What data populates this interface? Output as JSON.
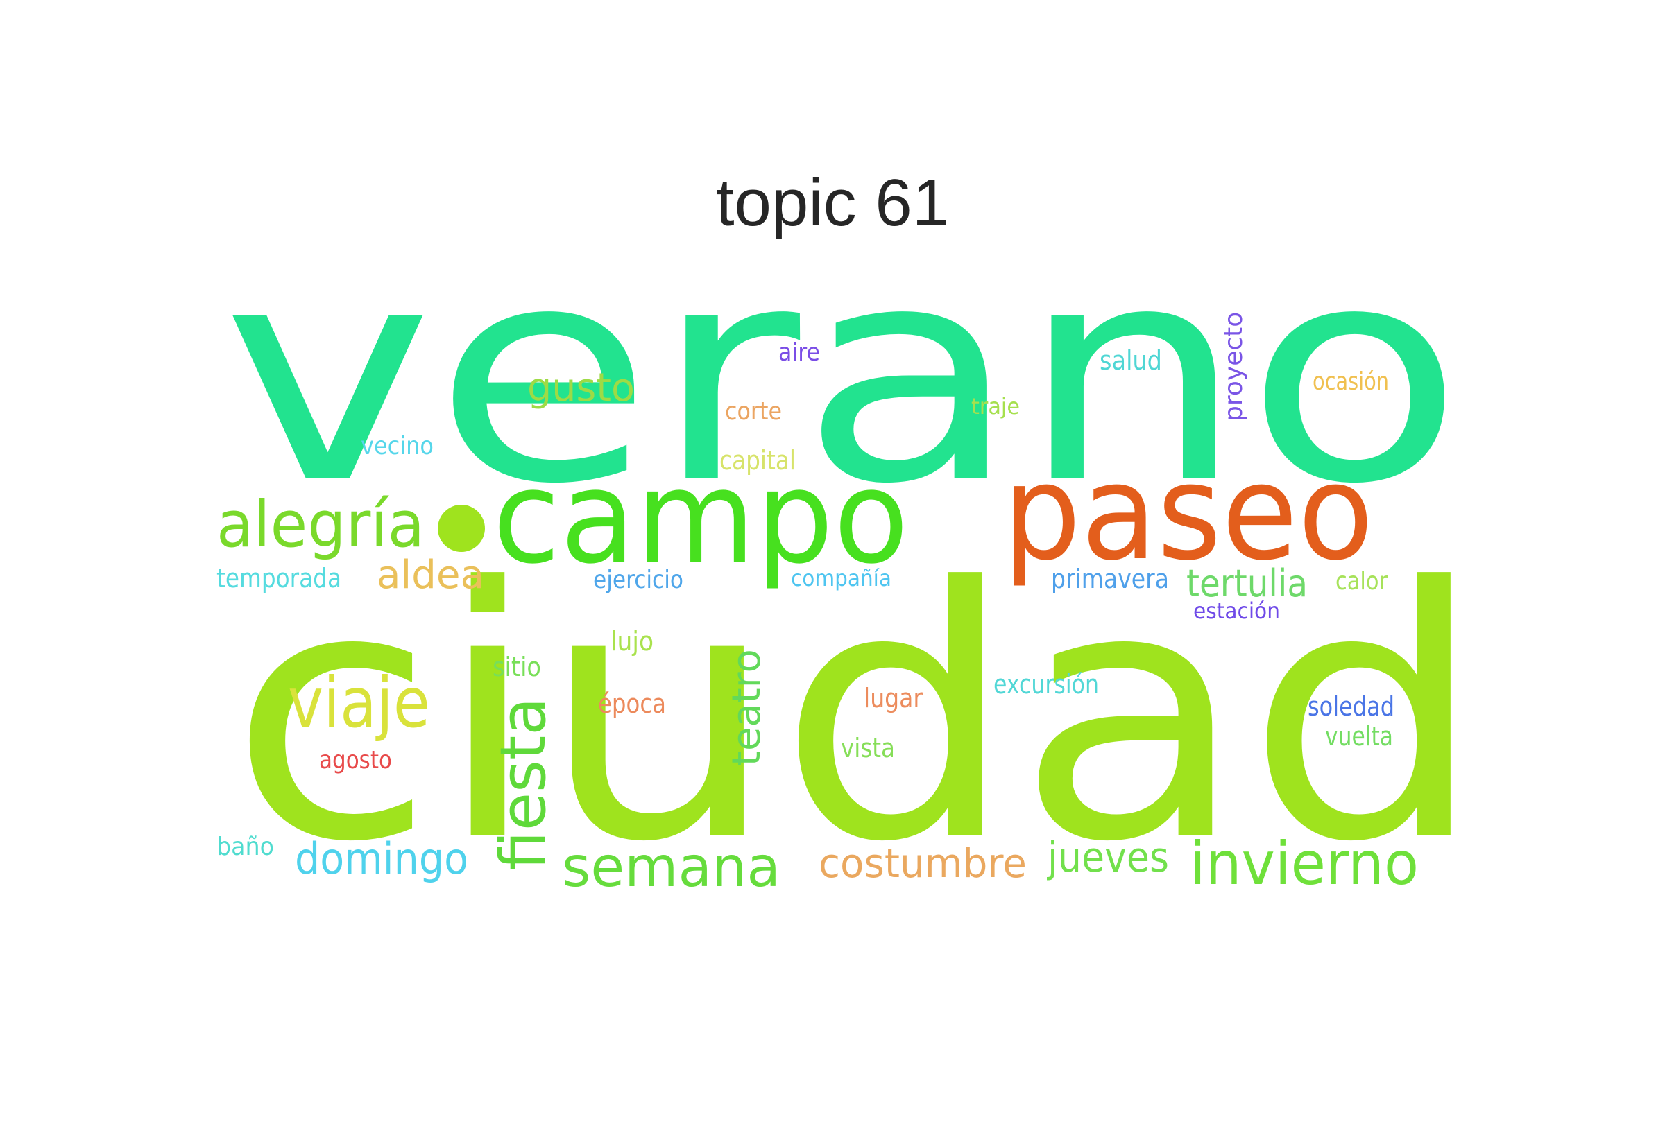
{
  "title": "topic 61",
  "words": [
    {
      "text": "verano",
      "color": "#22e38f"
    },
    {
      "text": "ciudad",
      "color": "#9fe31e"
    },
    {
      "text": "paseo",
      "color": "#e35e1c"
    },
    {
      "text": "campo",
      "color": "#47e01f"
    },
    {
      "text": "alegría",
      "color": "#7ad92b"
    },
    {
      "text": "viaje",
      "color": "#d9e23b"
    },
    {
      "text": "fiesta",
      "color": "#5fd93a"
    },
    {
      "text": "semana",
      "color": "#66dc3c"
    },
    {
      "text": "invierno",
      "color": "#6fe03a"
    },
    {
      "text": "domingo",
      "color": "#4fd2ec"
    },
    {
      "text": "costumbre",
      "color": "#eaa85f"
    },
    {
      "text": "jueves",
      "color": "#72e04c"
    },
    {
      "text": "tertulia",
      "color": "#6ed96a"
    },
    {
      "text": "teatro",
      "color": "#62d95a"
    },
    {
      "text": "gusto",
      "color": "#9edb45"
    },
    {
      "text": "aldea",
      "color": "#eac05a"
    },
    {
      "text": "primavera",
      "color": "#4fa0ea"
    },
    {
      "text": "estación",
      "color": "#6f4ae8"
    },
    {
      "text": "proyecto",
      "color": "#7a55e6"
    },
    {
      "text": "ocasión",
      "color": "#f0c050"
    },
    {
      "text": "salud",
      "color": "#4fd6d4"
    },
    {
      "text": "traje",
      "color": "#a6e04e"
    },
    {
      "text": "aire",
      "color": "#7a4de6"
    },
    {
      "text": "corte",
      "color": "#eba562"
    },
    {
      "text": "capital",
      "color": "#d7e36a"
    },
    {
      "text": "vecino",
      "color": "#55d6ea"
    },
    {
      "text": "temporada",
      "color": "#55dbdf"
    },
    {
      "text": "ejercicio",
      "color": "#4fa6ea"
    },
    {
      "text": "compañía",
      "color": "#4fc5f0"
    },
    {
      "text": "calor",
      "color": "#a7e25a"
    },
    {
      "text": "lujo",
      "color": "#a9e24d"
    },
    {
      "text": "sitio",
      "color": "#78df58"
    },
    {
      "text": "época",
      "color": "#ec8a5c"
    },
    {
      "text": "lugar",
      "color": "#ec8c5d"
    },
    {
      "text": "excursión",
      "color": "#52d7d6"
    },
    {
      "text": "soledad",
      "color": "#4a75e6"
    },
    {
      "text": "vuelta",
      "color": "#74dd63"
    },
    {
      "text": "vista",
      "color": "#86de58"
    },
    {
      "text": "agosto",
      "color": "#e84a4a"
    },
    {
      "text": "baño",
      "color": "#50dccf"
    }
  ]
}
